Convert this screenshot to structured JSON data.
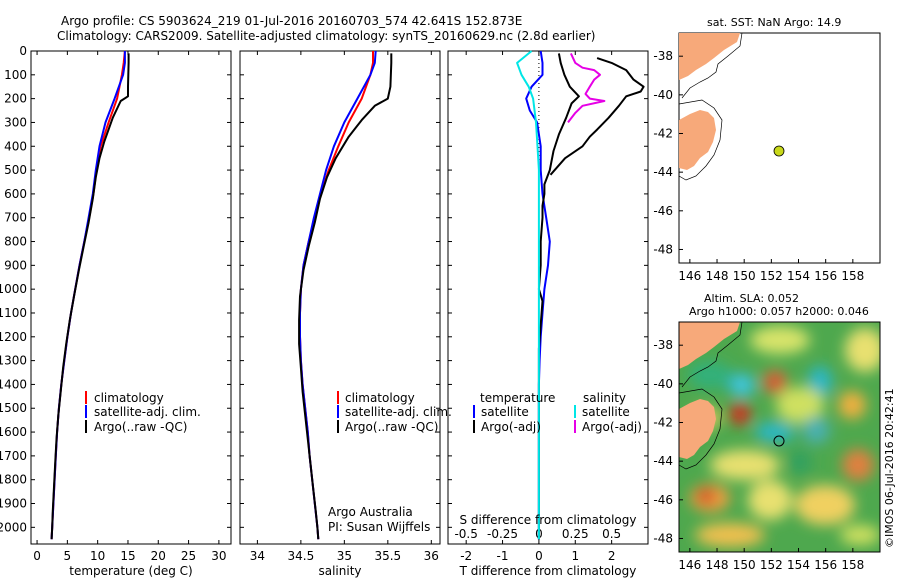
{
  "header": {
    "title_line1": "Argo profile: CS 5903624_219 01-Jul-2016 20160703_574 42.641S 152.873E",
    "title_line2": "Climatology: CARS2009. Satellite-adjusted climatology: synTS_20160629.nc (2.8d earlier)"
  },
  "colors": {
    "climatology": "#ff0000",
    "satellite": "#0000ff",
    "argo": "#000000",
    "satellite_diff_s": "#00e6e6",
    "argo_diff_s": "#e600e6",
    "land": "#f7a97a",
    "float_marker": "#c8d81a"
  },
  "legends": {
    "temp": [
      "climatology",
      "satellite-adj. clim.",
      "Argo(..raw -QC)"
    ],
    "sal": [
      "climatology",
      "satellite-adj. clim.",
      "Argo(..raw -QC)"
    ],
    "diff_left_title": "temperature",
    "diff_left": [
      "satellite",
      "Argo(-adj)"
    ],
    "diff_right_title": "salinity",
    "diff_right": [
      "satellite",
      "Argo(-adj)"
    ]
  },
  "credits": {
    "line1": "Argo Australia",
    "line2": "PI: Susan Wijffels",
    "watermark": "©IMOS 06-Jul-2016 20:42:41"
  },
  "maps": {
    "sst_title": "sat. SST: NaN Argo: 14.9",
    "sla_title1": "Altim. SLA: 0.052",
    "sla_title2": "Argo h1000: 0.057 h2000: 0.046",
    "x_ticks": [
      "146",
      "148",
      "150",
      "152",
      "154",
      "156",
      "158"
    ],
    "y_ticks": [
      "-38",
      "-40",
      "-42",
      "-44",
      "-46",
      "-48"
    ],
    "float_position": {
      "lon": 152.873,
      "lat": -42.641
    }
  },
  "chart_data": [
    {
      "type": "line",
      "xlabel": "temperature (deg C)",
      "ylabel": "",
      "xlim": [
        -1,
        32
      ],
      "ylim": [
        2070,
        0
      ],
      "x_ticks": [
        0,
        5,
        10,
        15,
        20,
        25,
        30
      ],
      "y_ticks": [
        0,
        100,
        200,
        300,
        400,
        500,
        600,
        700,
        800,
        900,
        1000,
        1100,
        1200,
        1300,
        1400,
        1500,
        1600,
        1700,
        1800,
        1900,
        2000
      ],
      "series": [
        {
          "name": "climatology",
          "points": [
            [
              14.5,
              0
            ],
            [
              14.3,
              50
            ],
            [
              14.0,
              100
            ],
            [
              13.2,
              200
            ],
            [
              11.8,
              300
            ],
            [
              10.5,
              400
            ],
            [
              9.8,
              500
            ],
            [
              9.3,
              600
            ],
            [
              8.6,
              700
            ],
            [
              7.8,
              800
            ],
            [
              7.0,
              900
            ],
            [
              6.3,
              1000
            ],
            [
              5.6,
              1100
            ],
            [
              5.0,
              1200
            ],
            [
              4.5,
              1300
            ],
            [
              4.0,
              1400
            ],
            [
              3.6,
              1500
            ],
            [
              3.3,
              1600
            ],
            [
              3.1,
              1700
            ],
            [
              2.9,
              1800
            ],
            [
              2.7,
              1900
            ],
            [
              2.5,
              2000
            ],
            [
              2.4,
              2050
            ]
          ]
        },
        {
          "name": "satellite-adj. clim.",
          "points": [
            [
              14.5,
              0
            ],
            [
              14.5,
              50
            ],
            [
              14.2,
              100
            ],
            [
              12.8,
              200
            ],
            [
              11.3,
              300
            ],
            [
              10.3,
              400
            ],
            [
              9.7,
              500
            ],
            [
              9.2,
              600
            ],
            [
              8.5,
              700
            ],
            [
              7.8,
              800
            ],
            [
              7.0,
              900
            ],
            [
              6.3,
              1000
            ],
            [
              5.6,
              1100
            ],
            [
              5.0,
              1200
            ],
            [
              4.5,
              1300
            ],
            [
              4.0,
              1400
            ],
            [
              3.6,
              1500
            ],
            [
              3.3,
              1600
            ],
            [
              3.1,
              1700
            ],
            [
              2.9,
              1800
            ],
            [
              2.7,
              1900
            ],
            [
              2.5,
              2000
            ],
            [
              2.4,
              2050
            ]
          ]
        },
        {
          "name": "Argo(..raw -QC)",
          "points": [
            [
              15.1,
              10
            ],
            [
              15.1,
              50
            ],
            [
              15.0,
              150
            ],
            [
              15.0,
              190
            ],
            [
              13.8,
              210
            ],
            [
              12.5,
              280
            ],
            [
              11.1,
              380
            ],
            [
              10.3,
              450
            ],
            [
              9.7,
              530
            ],
            [
              9.2,
              620
            ],
            [
              8.5,
              720
            ],
            [
              7.7,
              820
            ],
            [
              6.9,
              920
            ],
            [
              6.1,
              1030
            ],
            [
              5.4,
              1130
            ],
            [
              4.8,
              1230
            ],
            [
              4.3,
              1330
            ],
            [
              3.9,
              1430
            ],
            [
              3.5,
              1530
            ],
            [
              3.2,
              1630
            ],
            [
              3.0,
              1730
            ],
            [
              2.8,
              1830
            ],
            [
              2.6,
              1930
            ],
            [
              2.5,
              2000
            ],
            [
              2.4,
              2050
            ]
          ]
        }
      ]
    },
    {
      "type": "line",
      "xlabel": "salinity",
      "ylabel": "",
      "xlim": [
        33.8,
        36.1
      ],
      "ylim": [
        2070,
        0
      ],
      "x_ticks": [
        34,
        34.5,
        35,
        35.5,
        36
      ],
      "series": [
        {
          "name": "climatology",
          "points": [
            [
              35.33,
              0
            ],
            [
              35.33,
              50
            ],
            [
              35.3,
              100
            ],
            [
              35.2,
              200
            ],
            [
              35.05,
              300
            ],
            [
              34.93,
              400
            ],
            [
              34.82,
              500
            ],
            [
              34.73,
              600
            ],
            [
              34.66,
              700
            ],
            [
              34.59,
              800
            ],
            [
              34.53,
              900
            ],
            [
              34.5,
              1000
            ],
            [
              34.49,
              1100
            ],
            [
              34.49,
              1200
            ],
            [
              34.5,
              1300
            ],
            [
              34.52,
              1400
            ],
            [
              34.55,
              1500
            ],
            [
              34.58,
              1600
            ],
            [
              34.6,
              1700
            ],
            [
              34.63,
              1800
            ],
            [
              34.66,
              1900
            ],
            [
              34.69,
              2000
            ],
            [
              34.7,
              2050
            ]
          ]
        },
        {
          "name": "satellite-adj. clim.",
          "points": [
            [
              35.36,
              0
            ],
            [
              35.35,
              50
            ],
            [
              35.3,
              100
            ],
            [
              35.15,
              200
            ],
            [
              35.0,
              300
            ],
            [
              34.88,
              400
            ],
            [
              34.79,
              500
            ],
            [
              34.72,
              600
            ],
            [
              34.65,
              700
            ],
            [
              34.59,
              800
            ],
            [
              34.53,
              900
            ],
            [
              34.5,
              1000
            ],
            [
              34.49,
              1100
            ],
            [
              34.49,
              1200
            ],
            [
              34.5,
              1300
            ],
            [
              34.52,
              1400
            ],
            [
              34.55,
              1500
            ],
            [
              34.58,
              1600
            ],
            [
              34.6,
              1700
            ],
            [
              34.63,
              1800
            ],
            [
              34.66,
              1900
            ],
            [
              34.69,
              2000
            ],
            [
              34.7,
              2050
            ]
          ]
        },
        {
          "name": "Argo(..raw -QC)",
          "points": [
            [
              35.54,
              10
            ],
            [
              35.54,
              50
            ],
            [
              35.53,
              150
            ],
            [
              35.5,
              200
            ],
            [
              35.35,
              230
            ],
            [
              35.2,
              290
            ],
            [
              35.05,
              360
            ],
            [
              34.9,
              450
            ],
            [
              34.8,
              530
            ],
            [
              34.72,
              620
            ],
            [
              34.66,
              720
            ],
            [
              34.59,
              820
            ],
            [
              34.53,
              920
            ],
            [
              34.49,
              1030
            ],
            [
              34.48,
              1130
            ],
            [
              34.48,
              1230
            ],
            [
              34.5,
              1330
            ],
            [
              34.52,
              1430
            ],
            [
              34.55,
              1530
            ],
            [
              34.58,
              1630
            ],
            [
              34.61,
              1730
            ],
            [
              34.64,
              1830
            ],
            [
              34.67,
              1930
            ],
            [
              34.69,
              2000
            ],
            [
              34.7,
              2050
            ]
          ]
        }
      ]
    },
    {
      "type": "line",
      "xlabel": "T difference from climatology",
      "xlabel2": "S difference from climatology",
      "xlim": [
        -2.5,
        3
      ],
      "ylim": [
        2070,
        0
      ],
      "x_ticks": [
        -2,
        -1,
        0,
        1,
        2
      ],
      "x2_ticks": [
        -0.5,
        -0.25,
        0,
        0.25,
        0.5
      ],
      "series": [
        {
          "name": "T satellite",
          "points": [
            [
              0.05,
              0
            ],
            [
              0.1,
              50
            ],
            [
              0.1,
              100
            ],
            [
              -0.2,
              150
            ],
            [
              -0.35,
              200
            ],
            [
              -0.25,
              250
            ],
            [
              -0.05,
              300
            ],
            [
              0.05,
              400
            ],
            [
              0.05,
              500
            ],
            [
              0.1,
              600
            ],
            [
              0.2,
              700
            ],
            [
              0.3,
              800
            ],
            [
              0.25,
              900
            ],
            [
              0.15,
              1000
            ],
            [
              0.1,
              1100
            ],
            [
              0.05,
              1200
            ],
            [
              0.02,
              1300
            ],
            [
              0,
              1400
            ],
            [
              0,
              1600
            ],
            [
              0,
              1800
            ],
            [
              0,
              2050
            ]
          ]
        },
        {
          "name": "T Argo(-adj)",
          "points": [
            [
              0.55,
              10
            ],
            [
              0.6,
              50
            ],
            [
              0.7,
              100
            ],
            [
              0.85,
              150
            ],
            [
              1.1,
              190
            ],
            [
              0.9,
              220
            ],
            [
              0.75,
              280
            ],
            [
              0.55,
              350
            ],
            [
              0.4,
              420
            ],
            [
              0.3,
              500
            ],
            [
              0.15,
              560
            ],
            [
              0.15,
              600
            ],
            [
              0.1,
              650
            ],
            [
              0.1,
              700
            ],
            [
              0.05,
              800
            ],
            [
              0.05,
              900
            ],
            [
              0,
              1000
            ],
            [
              0.1,
              1050
            ],
            [
              0.05,
              1150
            ],
            [
              0,
              1250
            ],
            [
              0,
              1400
            ],
            [
              0,
              1600
            ],
            [
              0,
              2050
            ]
          ]
        },
        {
          "name": "S satellite",
          "points": [
            [
              -0.05,
              0
            ],
            [
              -0.15,
              50
            ],
            [
              -0.12,
              100
            ],
            [
              -0.07,
              150
            ],
            [
              -0.04,
              200
            ],
            [
              -0.02,
              300
            ],
            [
              -0.01,
              400
            ],
            [
              0,
              500
            ],
            [
              0,
              700
            ],
            [
              0,
              900
            ],
            [
              0,
              1100
            ],
            [
              0,
              1300
            ],
            [
              0,
              1500
            ],
            [
              0,
              1700
            ],
            [
              0,
              1900
            ],
            [
              0,
              2050
            ]
          ]
        },
        {
          "name": "S Argo(-adj)",
          "points": [
            [
              0.22,
              10
            ],
            [
              0.25,
              50
            ],
            [
              0.3,
              70
            ],
            [
              0.38,
              80
            ],
            [
              0.42,
              100
            ],
            [
              0.38,
              120
            ],
            [
              0.35,
              150
            ],
            [
              0.32,
              180
            ],
            [
              0.35,
              200
            ],
            [
              0.45,
              210
            ],
            [
              0.3,
              230
            ],
            [
              0.25,
              260
            ],
            [
              0.2,
              300
            ]
          ]
        },
        {
          "name": "S Argo(-adj) black",
          "points": [
            [
              0.4,
              30
            ],
            [
              0.5,
              50
            ],
            [
              0.6,
              80
            ],
            [
              0.65,
              120
            ],
            [
              0.72,
              150
            ],
            [
              0.7,
              170
            ],
            [
              0.6,
              190
            ],
            [
              0.55,
              230
            ],
            [
              0.48,
              280
            ],
            [
              0.4,
              330
            ],
            [
              0.35,
              360
            ],
            [
              0.3,
              400
            ],
            [
              0.18,
              450
            ],
            [
              0.08,
              520
            ]
          ]
        }
      ]
    }
  ]
}
